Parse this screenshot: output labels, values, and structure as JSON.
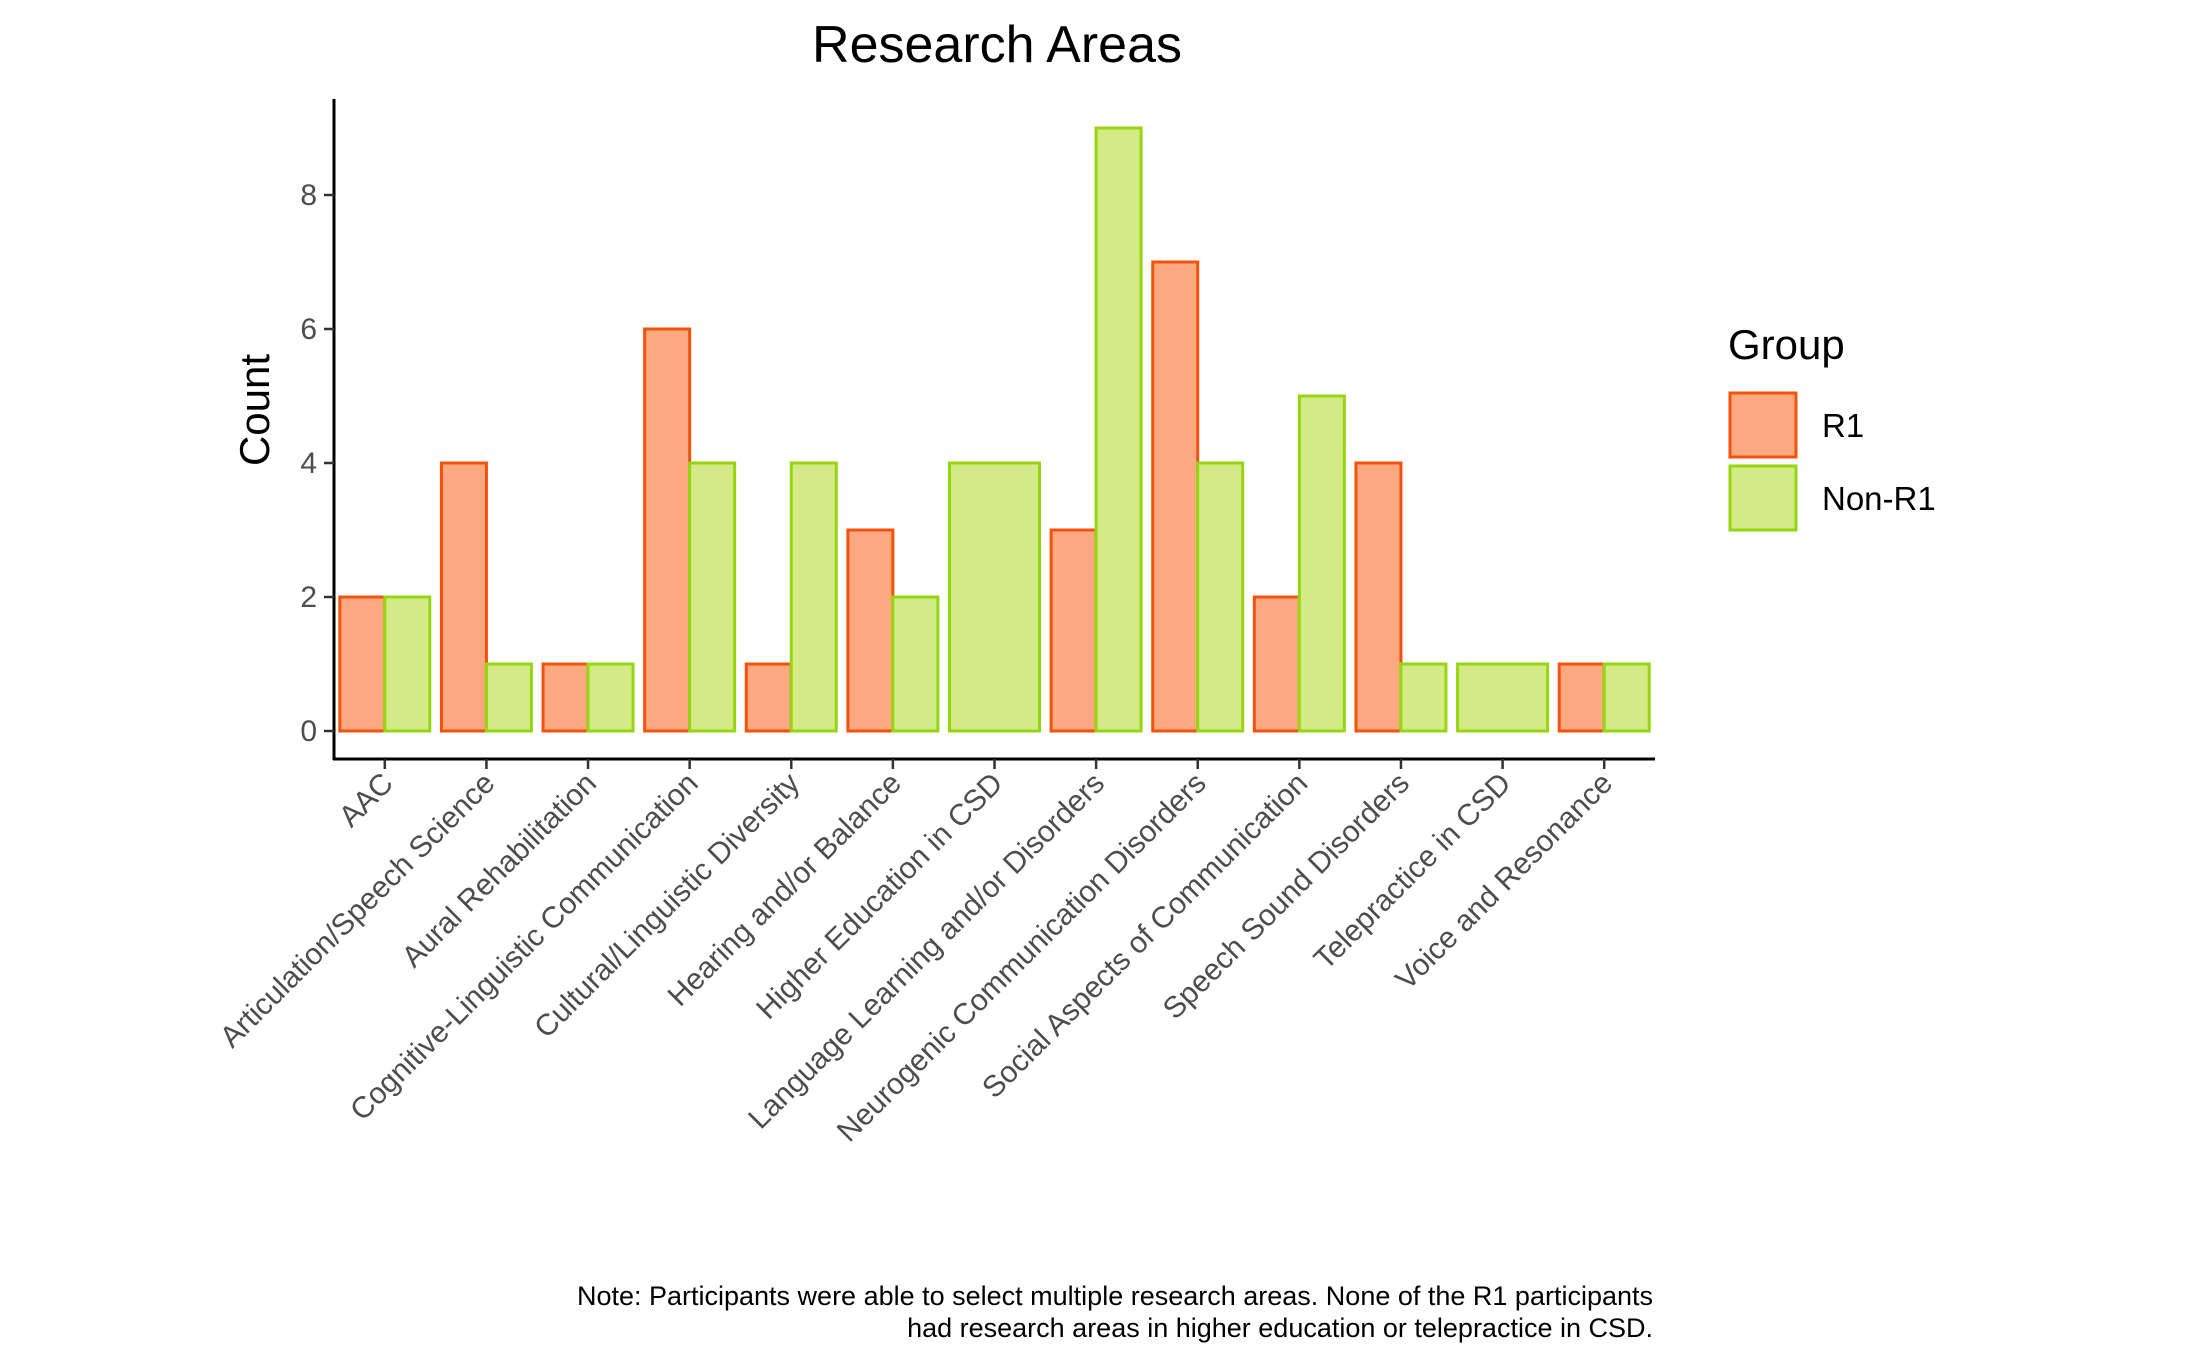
{
  "chart_data": {
    "type": "bar",
    "title": "Research Areas",
    "xlabel": "",
    "ylabel": "Count",
    "ylim": [
      -0.4,
      9.4
    ],
    "yticks": [
      0,
      2,
      4,
      6,
      8
    ],
    "grid": false,
    "legend": {
      "title": "Group",
      "placement": "right"
    },
    "categories": [
      "AAC",
      "Articulation/Speech Science",
      "Aural Rehabilitation",
      "Cognitive-Linguistic Communication",
      "Cultural/Linguistic Diversity",
      "Hearing and/or Balance",
      "Higher Education in CSD",
      "Language Learning and/or Disorders",
      "Neurogenic Communication Disorders",
      "Social Aspects of Communication",
      "Speech Sound Disorders",
      "Telepractice in CSD",
      "Voice and Resonance"
    ],
    "series": [
      {
        "name": "R1",
        "fill": "#fca981",
        "stroke": "#f4520b",
        "values": [
          2,
          4,
          1,
          6,
          1,
          3,
          0,
          3,
          7,
          2,
          4,
          0,
          1
        ]
      },
      {
        "name": "Non-R1",
        "fill": "#d3ea86",
        "stroke": "#95d611",
        "values": [
          2,
          1,
          1,
          4,
          4,
          2,
          4,
          9,
          4,
          5,
          1,
          1,
          1
        ]
      }
    ],
    "note": [
      "Note: Participants were able to select multiple research areas. None of the R1 participants",
      "had research areas in higher education or telepractice in CSD."
    ]
  }
}
